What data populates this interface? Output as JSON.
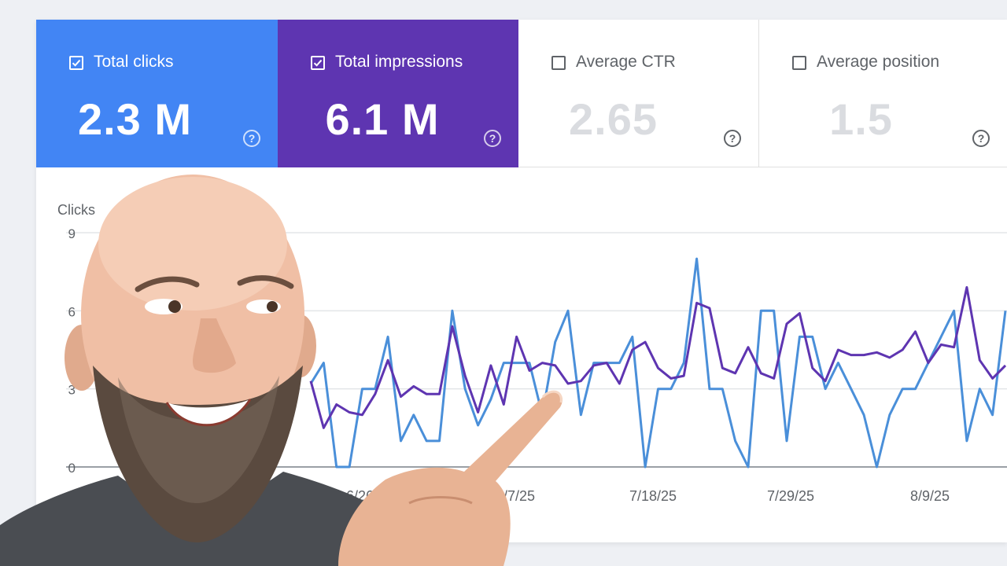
{
  "cards": [
    {
      "label": "Total clicks",
      "value": "2.3 M",
      "checked": true,
      "color": "#4285f4"
    },
    {
      "label": "Total impressions",
      "value": "6.1 M",
      "checked": true,
      "color": "#5e35b1"
    },
    {
      "label": "Average CTR",
      "value": "2.65",
      "checked": false,
      "color": "#ffffff"
    },
    {
      "label": "Average position",
      "value": "1.5",
      "checked": false,
      "color": "#ffffff"
    }
  ],
  "chart_data": {
    "type": "line",
    "ylabel": "Clicks",
    "yticks": [
      "9",
      "6",
      "3",
      "0"
    ],
    "ylim": [
      0,
      9
    ],
    "xticks": [
      "6/26/25",
      "7/7/25",
      "7/18/25",
      "7/29/25",
      "8/9/25"
    ],
    "grid": true,
    "series": [
      {
        "color": "#4a8fd9",
        "values": [
          3.2,
          4,
          0,
          0,
          3,
          3,
          5,
          1,
          2,
          1,
          1,
          6,
          3,
          1.6,
          2.6,
          4,
          4,
          4,
          2,
          4.8,
          6,
          2,
          4,
          4,
          4,
          5,
          0,
          3,
          3,
          4,
          8,
          3,
          3,
          1,
          0,
          6,
          6,
          1,
          5,
          5,
          3,
          4,
          3,
          2,
          0,
          2,
          3,
          3,
          4,
          5,
          6,
          1,
          3,
          2,
          6
        ]
      },
      {
        "color": "#5e35b1",
        "values": [
          3.3,
          1.5,
          2.4,
          2.1,
          2,
          2.8,
          4.1,
          2.7,
          3.1,
          2.8,
          2.8,
          5.4,
          3.5,
          2.1,
          3.9,
          2.4,
          5,
          3.7,
          4,
          3.9,
          3.2,
          3.3,
          3.9,
          4,
          3.2,
          4.5,
          4.8,
          3.8,
          3.4,
          3.5,
          6.3,
          6.1,
          3.8,
          3.6,
          4.6,
          3.6,
          3.4,
          5.5,
          5.9,
          3.8,
          3.3,
          4.5,
          4.3,
          4.3,
          4.4,
          4.2,
          4.5,
          5.2,
          4,
          4.7,
          4.6,
          6.9,
          4.1,
          3.4,
          3.9
        ]
      }
    ]
  },
  "colors": {
    "accent_blue": "#4285f4",
    "accent_purple": "#5e35b1"
  }
}
